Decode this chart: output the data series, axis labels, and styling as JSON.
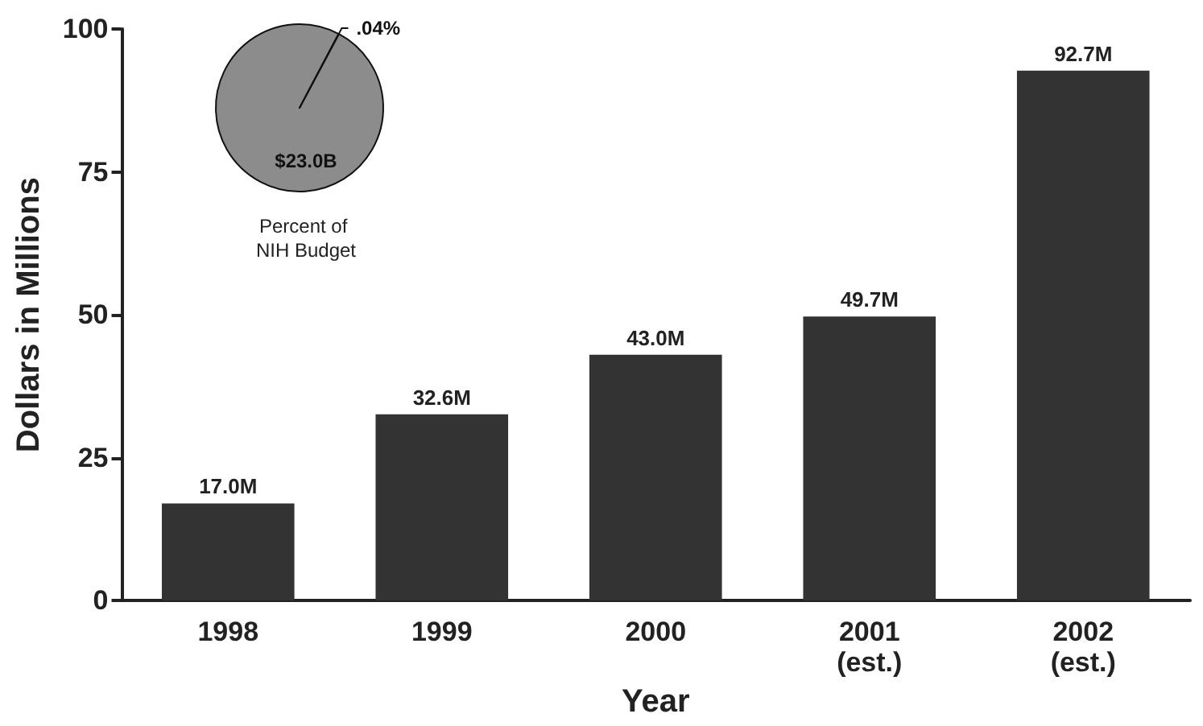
{
  "chart_data": [
    {
      "type": "bar",
      "xlabel": "Year",
      "ylabel": "Dollars in Millions",
      "categories": [
        "1998",
        "1999",
        "2000",
        "2001\n(est.)",
        "2002\n(est.)"
      ],
      "values": [
        17.0,
        32.6,
        43.0,
        49.7,
        92.7
      ],
      "color": "#333333",
      "value_labels": [
        "17.0M",
        "32.6M",
        "43.0M",
        "49.7M",
        "92.7M"
      ],
      "ylim": [
        0,
        100
      ],
      "yticks": [
        0,
        25,
        50,
        75,
        100
      ],
      "grid": false
    },
    {
      "type": "pie",
      "title": "Percent of NIH Budget",
      "categories": [
        null,
        null
      ],
      "values": [
        99.96,
        0.04
      ],
      "colors": [
        "#8c8c8c",
        "#000000"
      ],
      "value_labels": [
        null,
        ".04%"
      ],
      "annotations": [
        "$23.0B"
      ]
    }
  ]
}
